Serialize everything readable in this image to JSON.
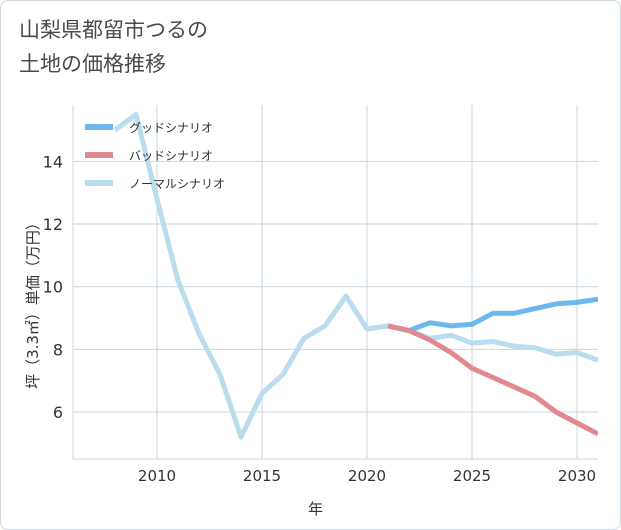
{
  "page": {
    "title_line1": "山梨県都留市つるの",
    "title_line2": "土地の価格推移"
  },
  "chart_data": {
    "type": "line",
    "title": "山梨県都留市つるの 土地の価格推移",
    "xlabel": "年",
    "ylabel": "坪（3.3㎡）単価（万円）",
    "xlim": [
      2006,
      2031
    ],
    "ylim": [
      4.5,
      15.8
    ],
    "x_ticks": [
      2010,
      2015,
      2020,
      2025,
      2030
    ],
    "y_ticks": [
      6,
      8,
      10,
      12,
      14
    ],
    "grid": true,
    "legend_position": "top-left",
    "series": [
      {
        "name": "グッドシナリオ",
        "color": "#6cb8ec",
        "x": [
          2021,
          2022,
          2023,
          2024,
          2025,
          2026,
          2027,
          2028,
          2029,
          2030,
          2031
        ],
        "y": [
          8.75,
          8.6,
          8.85,
          8.75,
          8.8,
          9.15,
          9.15,
          9.3,
          9.45,
          9.5,
          9.6
        ]
      },
      {
        "name": "バッドシナリオ",
        "color": "#e08a8f",
        "x": [
          2021,
          2022,
          2023,
          2024,
          2025,
          2026,
          2027,
          2028,
          2029,
          2030,
          2031
        ],
        "y": [
          8.75,
          8.6,
          8.3,
          7.9,
          7.4,
          7.1,
          6.8,
          6.5,
          6.0,
          5.65,
          5.3
        ]
      },
      {
        "name": "ノーマルシナリオ",
        "color": "#b9dcee",
        "x": [
          2008,
          2009,
          2010,
          2011,
          2012,
          2013,
          2014,
          2015,
          2016,
          2017,
          2018,
          2019,
          2020,
          2021,
          2022,
          2023,
          2024,
          2025,
          2026,
          2027,
          2028,
          2029,
          2030,
          2031
        ],
        "y": [
          15.0,
          15.5,
          12.8,
          10.2,
          8.5,
          7.2,
          5.2,
          6.6,
          7.2,
          8.35,
          8.75,
          9.7,
          8.65,
          8.75,
          8.6,
          8.35,
          8.45,
          8.2,
          8.25,
          8.1,
          8.05,
          7.85,
          7.9,
          7.65
        ]
      }
    ]
  }
}
